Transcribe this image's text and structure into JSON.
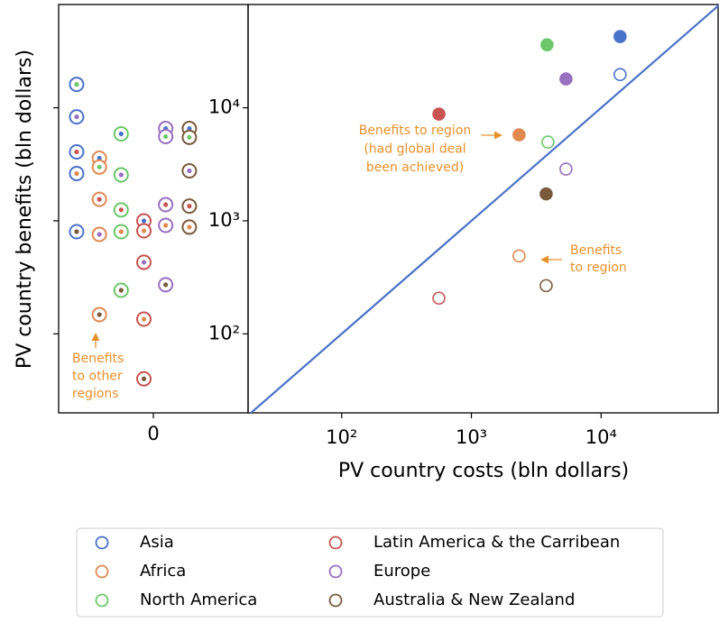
{
  "chart_data": {
    "type": "scatter",
    "xlabel": "PV country costs (bln dollars)",
    "ylabel": "PV country benefits (bln dollars)",
    "log_x": true,
    "log_y": true,
    "xlim": [
      19,
      81000
    ],
    "ylim": [
      20,
      82000
    ],
    "xticks": [
      {
        "value": 100,
        "label": "10²"
      },
      {
        "value": 1000,
        "label": "10³"
      },
      {
        "value": 10000,
        "label": "10⁴"
      }
    ],
    "yticks": [
      {
        "value": 100,
        "label": "10²"
      },
      {
        "value": 1000,
        "label": "10³"
      },
      {
        "value": 10000,
        "label": "10⁴"
      }
    ],
    "diagonal": true,
    "diagonal_color": "#4a72c8",
    "legend": "bottom",
    "series": [
      {
        "name": "Asia",
        "color": "#4a72c8",
        "x": [
          14000,
          14000
        ],
        "values": [
          42700,
          19700
        ],
        "filled": [
          true,
          false
        ]
      },
      {
        "name": "Africa",
        "color": "#e08a50",
        "x": [
          2330,
          2330
        ],
        "values": [
          5770,
          489
        ],
        "filled": [
          true,
          false
        ]
      },
      {
        "name": "North America",
        "color": "#6cc86a",
        "x": [
          3830,
          3890
        ],
        "values": [
          36100,
          4980
        ],
        "filled": [
          true,
          false
        ]
      },
      {
        "name": "Latin America & the Carribean",
        "color": "#c85450",
        "x": [
          562,
          562
        ],
        "values": [
          8800,
          207
        ],
        "filled": [
          true,
          false
        ]
      },
      {
        "name": "Europe",
        "color": "#9870c0",
        "x": [
          5360,
          5360
        ],
        "values": [
          18000,
          2870
        ],
        "filled": [
          true,
          false
        ]
      },
      {
        "name": "Australia & New Zealand",
        "color": "#7a5a3c",
        "x": [
          3770,
          3770
        ],
        "values": [
          1730,
          267
        ],
        "filled": [
          true,
          false
        ]
      }
    ],
    "strip": {
      "xlim": [
        -1,
        1
      ],
      "xticks": [
        0
      ],
      "points": [
        {
          "x": -0.81,
          "value": 16100,
          "ring": 0,
          "dot": 2
        },
        {
          "x": -0.81,
          "value": 8320,
          "ring": 0,
          "dot": 4
        },
        {
          "x": -0.81,
          "value": 4070,
          "ring": 0,
          "dot": 3
        },
        {
          "x": -0.81,
          "value": 2620,
          "ring": 0,
          "dot": 1
        },
        {
          "x": -0.81,
          "value": 802,
          "ring": 0,
          "dot": 5
        },
        {
          "x": -0.57,
          "value": 3580,
          "ring": 1,
          "dot": 0
        },
        {
          "x": -0.57,
          "value": 2990,
          "ring": 1,
          "dot": 2
        },
        {
          "x": -0.57,
          "value": 1550,
          "ring": 1,
          "dot": 3
        },
        {
          "x": -0.57,
          "value": 759,
          "ring": 1,
          "dot": 4
        },
        {
          "x": -0.57,
          "value": 148,
          "ring": 1,
          "dot": 5
        },
        {
          "x": -0.34,
          "value": 5880,
          "ring": 2,
          "dot": 0
        },
        {
          "x": -0.34,
          "value": 2550,
          "ring": 2,
          "dot": 4
        },
        {
          "x": -0.34,
          "value": 1250,
          "ring": 2,
          "dot": 3
        },
        {
          "x": -0.34,
          "value": 802,
          "ring": 2,
          "dot": 1
        },
        {
          "x": -0.34,
          "value": 243,
          "ring": 2,
          "dot": 5
        },
        {
          "x": -0.1,
          "value": 1000,
          "ring": 3,
          "dot": 0
        },
        {
          "x": -0.1,
          "value": 817,
          "ring": 3,
          "dot": 1
        },
        {
          "x": -0.1,
          "value": 430,
          "ring": 3,
          "dot": 4
        },
        {
          "x": -0.1,
          "value": 135,
          "ring": 3,
          "dot": 1
        },
        {
          "x": -0.1,
          "value": 40,
          "ring": 3,
          "dot": 5
        },
        {
          "x": 0.13,
          "value": 6560,
          "ring": 4,
          "dot": 0
        },
        {
          "x": 0.13,
          "value": 5560,
          "ring": 4,
          "dot": 2
        },
        {
          "x": 0.13,
          "value": 1390,
          "ring": 4,
          "dot": 3
        },
        {
          "x": 0.13,
          "value": 912,
          "ring": 4,
          "dot": 1
        },
        {
          "x": 0.13,
          "value": 272,
          "ring": 4,
          "dot": 5
        },
        {
          "x": 0.38,
          "value": 6560,
          "ring": 5,
          "dot": 0
        },
        {
          "x": 0.38,
          "value": 5480,
          "ring": 5,
          "dot": 2
        },
        {
          "x": 0.38,
          "value": 2770,
          "ring": 5,
          "dot": 4
        },
        {
          "x": 0.38,
          "value": 1350,
          "ring": 5,
          "dot": 3
        },
        {
          "x": 0.38,
          "value": 880,
          "ring": 5,
          "dot": 1
        }
      ]
    },
    "annotations": [
      {
        "lines": [
          "Benefits to region",
          "(had global deal",
          "been achieved)"
        ],
        "color": "#e8902a"
      },
      {
        "lines": [
          "Benefits",
          "to region"
        ],
        "color": "#e8902a"
      },
      {
        "lines": [
          "Benefits",
          "to other",
          "regions"
        ],
        "color": "#e8902a"
      }
    ]
  }
}
